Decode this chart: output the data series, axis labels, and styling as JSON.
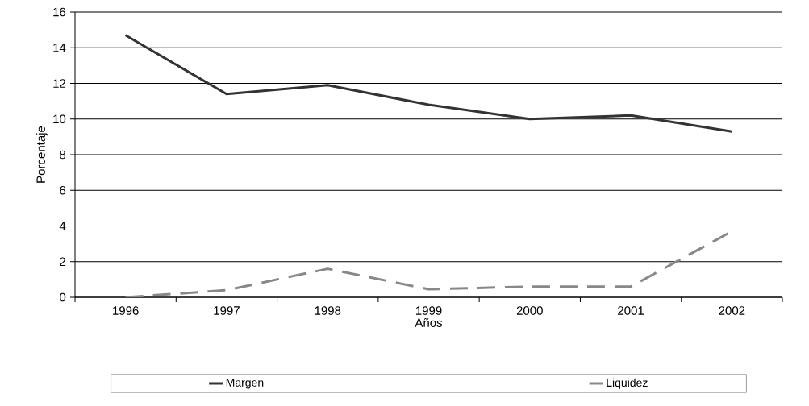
{
  "chart_data": {
    "type": "line",
    "xlabel": "Años",
    "ylabel": "Porcentaje",
    "categories": [
      "1996",
      "1997",
      "1998",
      "1999",
      "2000",
      "2001",
      "2002"
    ],
    "series": [
      {
        "name": "Margen",
        "color": "#333333",
        "values": [
          14.7,
          11.4,
          11.9,
          10.8,
          10.0,
          10.2,
          9.3
        ]
      },
      {
        "name": "Liquidez",
        "color": "#888888",
        "line_style": "dashed",
        "values": [
          0.0,
          0.4,
          1.6,
          0.45,
          0.6,
          0.6,
          3.7
        ]
      }
    ],
    "ylim": [
      0,
      16
    ],
    "yticks": [
      0,
      2,
      4,
      6,
      8,
      10,
      12,
      14,
      16
    ],
    "grid": "y",
    "legend": "bottom",
    "marker": "none",
    "line_style": "solid"
  }
}
